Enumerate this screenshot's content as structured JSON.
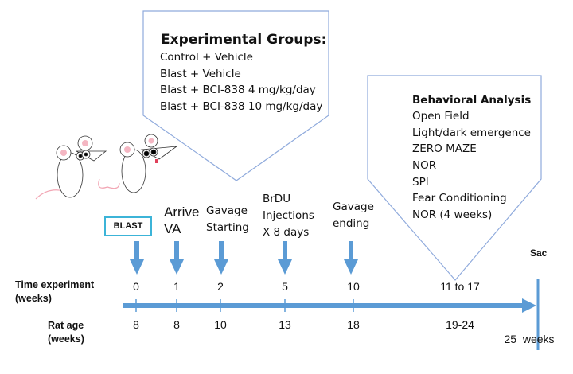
{
  "experimental_groups": {
    "title": "Experimental Groups:",
    "items": [
      "Control + Vehicle",
      "Blast + Vehicle",
      "Blast + BCI-838 4 mg/kg/day",
      "Blast + BCI-838 10 mg/kg/day"
    ]
  },
  "behavioral_analysis": {
    "title": "Behavioral Analysis",
    "items": [
      "Open Field",
      "Light/dark emergence",
      "ZERO MAZE",
      "NOR",
      "SPI",
      "Fear Conditioning",
      "NOR (4 weeks)"
    ]
  },
  "events": {
    "blast": "BLAST",
    "arrive": [
      "Arrive",
      "VA"
    ],
    "gavage_start": [
      "Gavage",
      "Starting"
    ],
    "brdu": [
      "BrDU",
      "Injections",
      "X 8 days"
    ],
    "gavage_end": [
      "Gavage",
      "ending"
    ],
    "sac": "Sac"
  },
  "timeline": {
    "time_label": [
      "Time experiment",
      "(weeks)"
    ],
    "age_label": [
      "Rat age",
      "(weeks)"
    ],
    "time_values": [
      "0",
      "1",
      "2",
      "5",
      "10",
      "11 to 17"
    ],
    "age_values": [
      "8",
      "8",
      "10",
      "13",
      "18",
      "19-24"
    ],
    "end_age": "25  weeks"
  },
  "colors": {
    "arrow": "#5b9bd5",
    "box_outline": "#8faadc",
    "blast_box": "#3cb4d8"
  }
}
